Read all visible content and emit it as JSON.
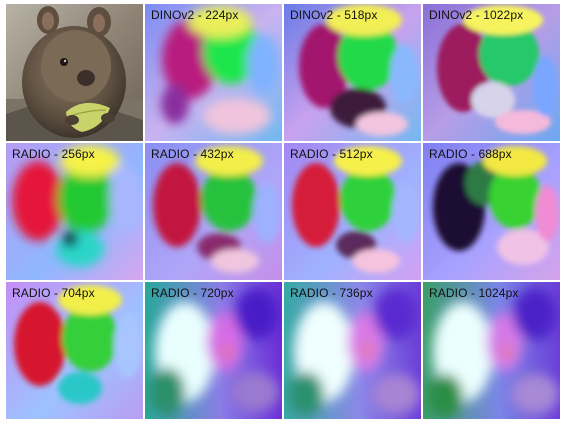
{
  "photo": {
    "subject_icon": "quokka-photo"
  },
  "tiles": [
    {
      "label": "DINOv2 - 224px"
    },
    {
      "label": "DINOv2 - 518px"
    },
    {
      "label": "DINOv2 - 1022px"
    },
    {
      "label": "RADIO - 256px"
    },
    {
      "label": "RADIO - 432px"
    },
    {
      "label": "RADIO - 512px"
    },
    {
      "label": "RADIO - 688px"
    },
    {
      "label": "RADIO - 704px"
    },
    {
      "label": "RADIO - 720px"
    },
    {
      "label": "RADIO - 736px"
    },
    {
      "label": "RADIO - 1024px"
    }
  ]
}
